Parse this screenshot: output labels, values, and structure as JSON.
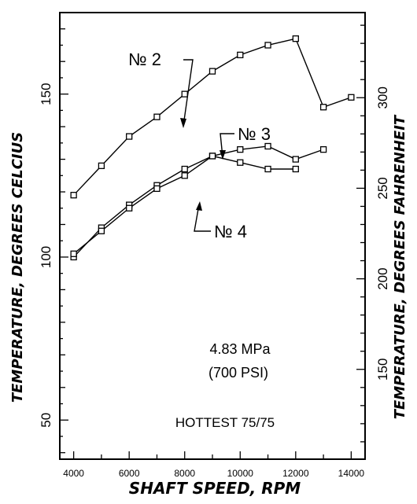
{
  "chart_data": {
    "type": "line",
    "xlabel": "SHAFT SPEED, RPM",
    "ylabel_left": "TEMPERATURE, DEGREES CELCIUS",
    "ylabel_right": "TEMPERATURE, DEGREES FAHRENHEIT",
    "xlim": [
      3500,
      14500
    ],
    "ylim": [
      38,
      175
    ],
    "x_ticks": [
      4000,
      6000,
      8000,
      10000,
      12000,
      14000
    ],
    "x_tick_labels": [
      "4000",
      "6000",
      "8000",
      "10000",
      "12000",
      "14000"
    ],
    "y_left_ticks": [
      50,
      100,
      150
    ],
    "y_left_tick_labels": [
      "50",
      "100",
      "150"
    ],
    "y_right_ticks_f": [
      150,
      200,
      250,
      300
    ],
    "y_right_tick_labels": [
      "150",
      "200",
      "250",
      "300"
    ],
    "grid": false,
    "annotations": [
      "4.83 MPa",
      "(700 PSI)",
      "HOTTEST 75/75"
    ],
    "series": [
      {
        "name": "№ 2",
        "x": [
          4000,
          5000,
          6000,
          7000,
          8000,
          9000,
          10000,
          11000,
          12000,
          13000,
          14000
        ],
        "y": [
          119,
          128,
          137,
          143,
          150,
          157,
          162,
          165,
          167,
          146,
          149
        ]
      },
      {
        "name": "№ 3",
        "x": [
          4000,
          5000,
          6000,
          7000,
          8000,
          9000,
          10000,
          11000,
          12000,
          13000
        ],
        "y": [
          100,
          109,
          116,
          122,
          127,
          131,
          133,
          134,
          130,
          133
        ]
      },
      {
        "name": "№ 4",
        "x": [
          4000,
          5000,
          6000,
          7000,
          8000,
          9000,
          10000,
          11000,
          12000
        ],
        "y": [
          101,
          108,
          115,
          121,
          125,
          131,
          129,
          127,
          127
        ]
      }
    ]
  }
}
